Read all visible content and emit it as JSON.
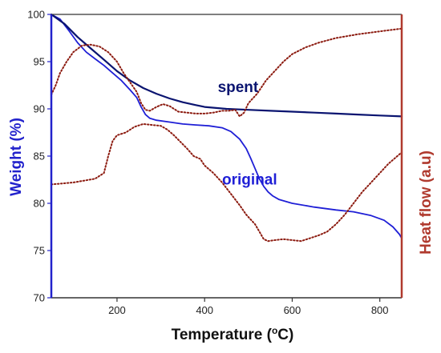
{
  "chart_data": {
    "type": "line",
    "title": "",
    "xlabel": "Temperature (",
    "xlabel_sup": "o",
    "xlabel_unit": "C)",
    "ylabel": "Weight (%)",
    "y2label": "Heat flow (a.u)",
    "xlim": [
      50,
      850
    ],
    "ylim": [
      70,
      100
    ],
    "x_ticks": [
      200,
      400,
      600,
      800
    ],
    "y_ticks": [
      70,
      75,
      80,
      85,
      90,
      95,
      100
    ],
    "grid": false,
    "colors": {
      "original": "#1f1fd6",
      "spent": "#0a1470",
      "heat_flow": "#8c1b10",
      "left_axis": "#2222cc",
      "right_axis": "#b03a2e"
    },
    "annotations": [
      {
        "text": "spent",
        "x": 430,
        "y": 91.8
      },
      {
        "text": "original",
        "x": 440,
        "y": 82.0
      }
    ],
    "series": [
      {
        "key": "original",
        "axis": "left",
        "style": "solid",
        "points": [
          [
            50,
            100
          ],
          [
            70,
            99.5
          ],
          [
            90,
            98.3
          ],
          [
            110,
            97.0
          ],
          [
            130,
            96.0
          ],
          [
            150,
            95.3
          ],
          [
            170,
            94.6
          ],
          [
            190,
            93.8
          ],
          [
            210,
            93.0
          ],
          [
            230,
            92.0
          ],
          [
            245,
            91.2
          ],
          [
            255,
            90.2
          ],
          [
            265,
            89.4
          ],
          [
            275,
            89.0
          ],
          [
            290,
            88.8
          ],
          [
            320,
            88.6
          ],
          [
            350,
            88.4
          ],
          [
            380,
            88.3
          ],
          [
            410,
            88.2
          ],
          [
            440,
            88.0
          ],
          [
            460,
            87.6
          ],
          [
            480,
            86.8
          ],
          [
            495,
            85.8
          ],
          [
            505,
            84.8
          ],
          [
            515,
            83.7
          ],
          [
            525,
            82.6
          ],
          [
            535,
            81.8
          ],
          [
            545,
            81.2
          ],
          [
            555,
            80.8
          ],
          [
            570,
            80.4
          ],
          [
            600,
            80.0
          ],
          [
            650,
            79.6
          ],
          [
            700,
            79.3
          ],
          [
            740,
            79.1
          ],
          [
            780,
            78.7
          ],
          [
            810,
            78.2
          ],
          [
            830,
            77.5
          ],
          [
            845,
            76.7
          ],
          [
            850,
            76.3
          ]
        ]
      },
      {
        "key": "spent",
        "axis": "left",
        "style": "solid",
        "points": [
          [
            50,
            100
          ],
          [
            80,
            99.0
          ],
          [
            110,
            97.6
          ],
          [
            140,
            96.4
          ],
          [
            170,
            95.2
          ],
          [
            200,
            94.0
          ],
          [
            230,
            93.0
          ],
          [
            260,
            92.2
          ],
          [
            290,
            91.6
          ],
          [
            320,
            91.1
          ],
          [
            350,
            90.7
          ],
          [
            380,
            90.4
          ],
          [
            400,
            90.2
          ],
          [
            450,
            90.0
          ],
          [
            500,
            89.9
          ],
          [
            550,
            89.8
          ],
          [
            600,
            89.7
          ],
          [
            650,
            89.6
          ],
          [
            700,
            89.5
          ],
          [
            750,
            89.4
          ],
          [
            800,
            89.3
          ],
          [
            850,
            89.2
          ]
        ]
      },
      {
        "key": "heat_flow_original",
        "axis": "right",
        "style": "dotted",
        "points": [
          [
            50,
            82.0
          ],
          [
            100,
            82.2
          ],
          [
            150,
            82.6
          ],
          [
            170,
            83.2
          ],
          [
            180,
            85.0
          ],
          [
            190,
            86.6
          ],
          [
            200,
            87.2
          ],
          [
            220,
            87.5
          ],
          [
            240,
            88.1
          ],
          [
            260,
            88.4
          ],
          [
            280,
            88.3
          ],
          [
            300,
            88.2
          ],
          [
            315,
            87.8
          ],
          [
            330,
            87.2
          ],
          [
            345,
            86.5
          ],
          [
            360,
            85.8
          ],
          [
            375,
            85.0
          ],
          [
            390,
            84.7
          ],
          [
            400,
            84.0
          ],
          [
            420,
            83.2
          ],
          [
            440,
            82.2
          ],
          [
            460,
            81.0
          ],
          [
            480,
            79.8
          ],
          [
            495,
            78.8
          ],
          [
            505,
            78.3
          ],
          [
            515,
            77.8
          ],
          [
            525,
            77.0
          ],
          [
            535,
            76.2
          ],
          [
            545,
            76.0
          ],
          [
            560,
            76.1
          ],
          [
            580,
            76.2
          ],
          [
            600,
            76.1
          ],
          [
            620,
            76.0
          ],
          [
            640,
            76.3
          ],
          [
            660,
            76.6
          ],
          [
            680,
            77.0
          ],
          [
            700,
            77.8
          ],
          [
            720,
            78.8
          ],
          [
            740,
            80.0
          ],
          [
            760,
            81.2
          ],
          [
            780,
            82.2
          ],
          [
            800,
            83.2
          ],
          [
            820,
            84.2
          ],
          [
            835,
            84.8
          ],
          [
            850,
            85.4
          ]
        ]
      },
      {
        "key": "heat_flow_spent",
        "axis": "right",
        "style": "dotted",
        "points": [
          [
            50,
            91.5
          ],
          [
            60,
            92.5
          ],
          [
            70,
            93.8
          ],
          [
            85,
            95.0
          ],
          [
            100,
            96.0
          ],
          [
            120,
            96.7
          ],
          [
            140,
            96.8
          ],
          [
            160,
            96.6
          ],
          [
            180,
            96.0
          ],
          [
            200,
            95.0
          ],
          [
            215,
            93.8
          ],
          [
            230,
            92.8
          ],
          [
            245,
            91.8
          ],
          [
            255,
            90.6
          ],
          [
            265,
            89.9
          ],
          [
            275,
            89.8
          ],
          [
            290,
            90.2
          ],
          [
            305,
            90.5
          ],
          [
            320,
            90.3
          ],
          [
            340,
            89.7
          ],
          [
            360,
            89.6
          ],
          [
            380,
            89.5
          ],
          [
            400,
            89.5
          ],
          [
            420,
            89.6
          ],
          [
            440,
            89.8
          ],
          [
            455,
            89.8
          ],
          [
            470,
            89.9
          ],
          [
            480,
            89.2
          ],
          [
            490,
            89.6
          ],
          [
            500,
            90.6
          ],
          [
            520,
            91.6
          ],
          [
            540,
            93.0
          ],
          [
            560,
            94.0
          ],
          [
            580,
            95.0
          ],
          [
            600,
            95.8
          ],
          [
            630,
            96.5
          ],
          [
            660,
            97.0
          ],
          [
            700,
            97.5
          ],
          [
            750,
            97.9
          ],
          [
            800,
            98.2
          ],
          [
            850,
            98.5
          ]
        ]
      }
    ]
  }
}
